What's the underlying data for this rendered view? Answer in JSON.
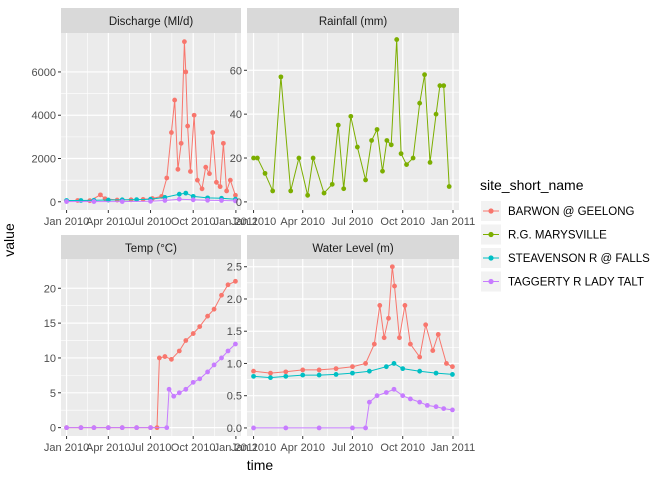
{
  "chart_data": {
    "type": "scatter",
    "x_label": "time",
    "y_label": "value",
    "legend": {
      "title": "site_short_name",
      "position": "right",
      "entries": [
        {
          "name": "BARWON @ GEELONG",
          "color": "#F8766D"
        },
        {
          "name": "R.G. MARYSVILLE",
          "color": "#7CAE00"
        },
        {
          "name": "STEAVENSON R @ FALLS",
          "color": "#00BFC4"
        },
        {
          "name": "TAGGERTY R LADY TALT",
          "color": "#C77CFF"
        }
      ]
    },
    "x_ticks": [
      "Jan 2010",
      "Apr 2010",
      "Jul 2010",
      "Oct 2010",
      "Jan 2011"
    ],
    "x_range": [
      "2009-12-20",
      "2011-01-12"
    ],
    "grid": true,
    "panels": [
      {
        "strip": "Discharge (Ml/d)",
        "ylim": [
          -380,
          7800
        ],
        "y_ticks": [
          0,
          2000,
          4000,
          6000
        ],
        "series": [
          {
            "name": "BARWON @ GEELONG",
            "points": [
              [
                "2010-01-01",
                40
              ],
              [
                "2010-01-25",
                60
              ],
              [
                "2010-02-20",
                50
              ],
              [
                "2010-03-15",
                320
              ],
              [
                "2010-03-25",
                140
              ],
              [
                "2010-04-20",
                80
              ],
              [
                "2010-05-20",
                90
              ],
              [
                "2010-06-15",
                110
              ],
              [
                "2010-07-05",
                150
              ],
              [
                "2010-07-25",
                250
              ],
              [
                "2010-08-05",
                1100
              ],
              [
                "2010-08-15",
                3200
              ],
              [
                "2010-08-22",
                4700
              ],
              [
                "2010-08-29",
                1500
              ],
              [
                "2010-09-05",
                2700
              ],
              [
                "2010-09-12",
                7400
              ],
              [
                "2010-09-15",
                6000
              ],
              [
                "2010-09-19",
                3500
              ],
              [
                "2010-09-25",
                1400
              ],
              [
                "2010-10-03",
                4000
              ],
              [
                "2010-10-10",
                1000
              ],
              [
                "2010-10-20",
                600
              ],
              [
                "2010-10-28",
                1600
              ],
              [
                "2010-11-05",
                1300
              ],
              [
                "2010-11-12",
                3200
              ],
              [
                "2010-11-20",
                900
              ],
              [
                "2010-11-28",
                700
              ],
              [
                "2010-12-05",
                2700
              ],
              [
                "2010-12-12",
                500
              ],
              [
                "2010-12-20",
                1000
              ],
              [
                "2010-12-31",
                300
              ]
            ]
          },
          {
            "name": "R.G. MARYSVILLE",
            "points": []
          },
          {
            "name": "STEAVENSON R @ FALLS",
            "points": [
              [
                "2010-01-01",
                60
              ],
              [
                "2010-02-01",
                60
              ],
              [
                "2010-03-01",
                70
              ],
              [
                "2010-04-01",
                80
              ],
              [
                "2010-05-01",
                90
              ],
              [
                "2010-06-01",
                100
              ],
              [
                "2010-07-01",
                120
              ],
              [
                "2010-08-01",
                200
              ],
              [
                "2010-09-01",
                350
              ],
              [
                "2010-09-15",
                400
              ],
              [
                "2010-10-01",
                250
              ],
              [
                "2010-11-01",
                180
              ],
              [
                "2010-12-01",
                160
              ],
              [
                "2010-12-31",
                120
              ]
            ]
          },
          {
            "name": "TAGGERTY R LADY TALT",
            "points": [
              [
                "2010-01-01",
                10
              ],
              [
                "2010-03-01",
                10
              ],
              [
                "2010-05-01",
                10
              ],
              [
                "2010-07-01",
                20
              ],
              [
                "2010-08-01",
                60
              ],
              [
                "2010-09-01",
                120
              ],
              [
                "2010-10-01",
                90
              ],
              [
                "2010-11-01",
                70
              ],
              [
                "2010-12-01",
                60
              ],
              [
                "2010-12-31",
                40
              ]
            ]
          }
        ]
      },
      {
        "strip": "Rainfall (mm)",
        "ylim": [
          -3.7,
          77
        ],
        "y_ticks": [
          0,
          20,
          40,
          60
        ],
        "series": [
          {
            "name": "BARWON @ GEELONG",
            "points": []
          },
          {
            "name": "R.G. MARYSVILLE",
            "points": [
              [
                "2010-01-01",
                20
              ],
              [
                "2010-01-08",
                20
              ],
              [
                "2010-01-22",
                13
              ],
              [
                "2010-02-05",
                5
              ],
              [
                "2010-02-20",
                57
              ],
              [
                "2010-03-10",
                5
              ],
              [
                "2010-03-25",
                20
              ],
              [
                "2010-04-10",
                3
              ],
              [
                "2010-04-20",
                20
              ],
              [
                "2010-05-10",
                4
              ],
              [
                "2010-05-25",
                8
              ],
              [
                "2010-06-05",
                35
              ],
              [
                "2010-06-15",
                6
              ],
              [
                "2010-06-28",
                39
              ],
              [
                "2010-07-10",
                25
              ],
              [
                "2010-07-25",
                10
              ],
              [
                "2010-08-05",
                28
              ],
              [
                "2010-08-15",
                33
              ],
              [
                "2010-08-25",
                14
              ],
              [
                "2010-09-02",
                28
              ],
              [
                "2010-09-10",
                26
              ],
              [
                "2010-09-20",
                74
              ],
              [
                "2010-09-28",
                22
              ],
              [
                "2010-10-08",
                17
              ],
              [
                "2010-10-20",
                20
              ],
              [
                "2010-11-01",
                45
              ],
              [
                "2010-11-10",
                58
              ],
              [
                "2010-11-20",
                18
              ],
              [
                "2010-12-01",
                40
              ],
              [
                "2010-12-08",
                53
              ],
              [
                "2010-12-15",
                53
              ],
              [
                "2010-12-25",
                7
              ]
            ]
          },
          {
            "name": "STEAVENSON R @ FALLS",
            "points": []
          },
          {
            "name": "TAGGERTY R LADY TALT",
            "points": []
          }
        ]
      },
      {
        "strip": "Temp (°C)",
        "ylim": [
          -1.2,
          24.2
        ],
        "y_ticks": [
          0,
          5,
          10,
          15,
          20
        ],
        "series": [
          {
            "name": "BARWON @ GEELONG",
            "points": [
              [
                "2010-01-01",
                0
              ],
              [
                "2010-02-01",
                0
              ],
              [
                "2010-03-01",
                0
              ],
              [
                "2010-04-01",
                0
              ],
              [
                "2010-05-01",
                0
              ],
              [
                "2010-06-01",
                0
              ],
              [
                "2010-07-01",
                0
              ],
              [
                "2010-07-15",
                0
              ],
              [
                "2010-07-20",
                10
              ],
              [
                "2010-08-01",
                10.2
              ],
              [
                "2010-08-15",
                9.8
              ],
              [
                "2010-09-01",
                11
              ],
              [
                "2010-09-15",
                12.5
              ],
              [
                "2010-10-01",
                13.5
              ],
              [
                "2010-10-15",
                14.5
              ],
              [
                "2010-11-01",
                16
              ],
              [
                "2010-11-15",
                17
              ],
              [
                "2010-12-01",
                19
              ],
              [
                "2010-12-15",
                20.5
              ],
              [
                "2010-12-31",
                21
              ]
            ]
          },
          {
            "name": "R.G. MARYSVILLE",
            "points": []
          },
          {
            "name": "STEAVENSON R @ FALLS",
            "points": []
          },
          {
            "name": "TAGGERTY R LADY TALT",
            "points": [
              [
                "2010-01-01",
                0
              ],
              [
                "2010-02-01",
                0
              ],
              [
                "2010-03-01",
                0
              ],
              [
                "2010-04-01",
                0
              ],
              [
                "2010-05-01",
                0
              ],
              [
                "2010-06-01",
                0
              ],
              [
                "2010-07-01",
                0
              ],
              [
                "2010-08-05",
                0
              ],
              [
                "2010-08-10",
                5.5
              ],
              [
                "2010-08-20",
                4.5
              ],
              [
                "2010-09-01",
                5
              ],
              [
                "2010-09-15",
                5.5
              ],
              [
                "2010-10-01",
                6.5
              ],
              [
                "2010-10-15",
                7
              ],
              [
                "2010-11-01",
                8
              ],
              [
                "2010-11-15",
                9
              ],
              [
                "2010-12-01",
                10
              ],
              [
                "2010-12-15",
                11
              ],
              [
                "2010-12-31",
                12
              ]
            ]
          }
        ]
      },
      {
        "strip": "Water Level (m)",
        "ylim": [
          -0.125,
          2.62
        ],
        "y_ticks": [
          0.0,
          0.5,
          1.0,
          1.5,
          2.0,
          2.5
        ],
        "series": [
          {
            "name": "BARWON @ GEELONG",
            "points": [
              [
                "2010-01-01",
                0.88
              ],
              [
                "2010-02-01",
                0.85
              ],
              [
                "2010-03-01",
                0.87
              ],
              [
                "2010-04-01",
                0.9
              ],
              [
                "2010-05-01",
                0.9
              ],
              [
                "2010-06-01",
                0.92
              ],
              [
                "2010-07-01",
                0.95
              ],
              [
                "2010-07-25",
                1.0
              ],
              [
                "2010-08-10",
                1.3
              ],
              [
                "2010-08-20",
                1.9
              ],
              [
                "2010-08-28",
                1.4
              ],
              [
                "2010-09-05",
                1.7
              ],
              [
                "2010-09-12",
                2.5
              ],
              [
                "2010-09-16",
                2.2
              ],
              [
                "2010-09-25",
                1.4
              ],
              [
                "2010-10-05",
                1.9
              ],
              [
                "2010-10-15",
                1.3
              ],
              [
                "2010-11-01",
                1.1
              ],
              [
                "2010-11-12",
                1.6
              ],
              [
                "2010-11-25",
                1.2
              ],
              [
                "2010-12-05",
                1.45
              ],
              [
                "2010-12-20",
                1.0
              ],
              [
                "2010-12-31",
                0.95
              ]
            ]
          },
          {
            "name": "R.G. MARYSVILLE",
            "points": []
          },
          {
            "name": "STEAVENSON R @ FALLS",
            "points": [
              [
                "2010-01-01",
                0.8
              ],
              [
                "2010-02-01",
                0.78
              ],
              [
                "2010-03-01",
                0.8
              ],
              [
                "2010-04-01",
                0.82
              ],
              [
                "2010-05-01",
                0.82
              ],
              [
                "2010-06-01",
                0.83
              ],
              [
                "2010-07-01",
                0.85
              ],
              [
                "2010-08-01",
                0.88
              ],
              [
                "2010-09-01",
                0.95
              ],
              [
                "2010-09-15",
                1.0
              ],
              [
                "2010-10-01",
                0.92
              ],
              [
                "2010-11-01",
                0.88
              ],
              [
                "2010-12-01",
                0.85
              ],
              [
                "2010-12-31",
                0.83
              ]
            ]
          },
          {
            "name": "TAGGERTY R LADY TALT",
            "points": [
              [
                "2010-01-01",
                0
              ],
              [
                "2010-03-01",
                0
              ],
              [
                "2010-05-01",
                0
              ],
              [
                "2010-07-01",
                0
              ],
              [
                "2010-07-25",
                0
              ],
              [
                "2010-08-01",
                0.4
              ],
              [
                "2010-08-15",
                0.5
              ],
              [
                "2010-09-01",
                0.55
              ],
              [
                "2010-09-15",
                0.6
              ],
              [
                "2010-10-01",
                0.5
              ],
              [
                "2010-10-15",
                0.45
              ],
              [
                "2010-11-01",
                0.4
              ],
              [
                "2010-11-15",
                0.35
              ],
              [
                "2010-12-01",
                0.33
              ],
              [
                "2010-12-15",
                0.3
              ],
              [
                "2010-12-31",
                0.28
              ]
            ]
          }
        ]
      }
    ]
  }
}
